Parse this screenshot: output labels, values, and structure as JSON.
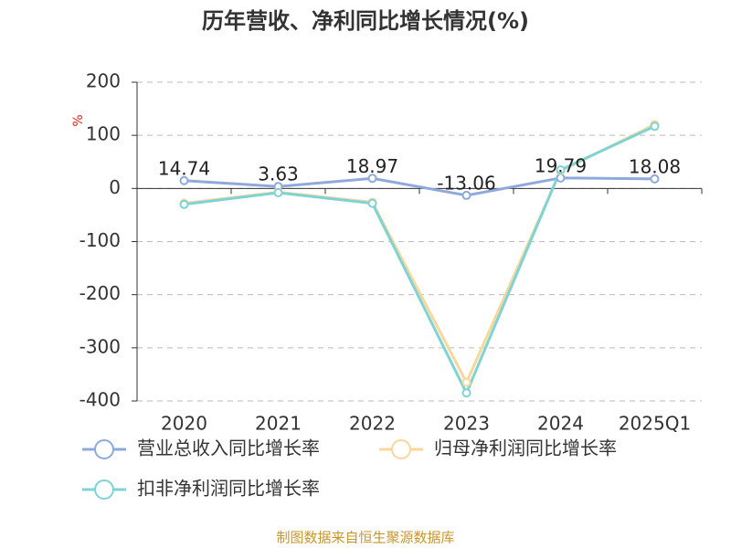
{
  "chart_data": {
    "type": "line",
    "title": "历年营收、净利同比增长情况(%)",
    "y_label": "%",
    "categories": [
      "2020",
      "2021",
      "2022",
      "2023",
      "2024",
      "2025Q1"
    ],
    "series": [
      {
        "name": "营业总收入同比增长率",
        "color": "#8fa9dc",
        "values": [
          14.74,
          3.63,
          18.97,
          -13.06,
          19.79,
          18.08
        ],
        "labels": true
      },
      {
        "name": "归母净利润同比增长率",
        "color": "#f9d79b",
        "values": [
          -28,
          -7,
          -26,
          -365,
          33,
          120
        ],
        "labels": false
      },
      {
        "name": "扣非净利润同比增长率",
        "color": "#7fd3d4",
        "values": [
          -30,
          -8,
          -28,
          -385,
          35,
          117
        ],
        "labels": false
      }
    ],
    "ylim": [
      -400,
      200
    ],
    "yticks": [
      -400,
      -300,
      -200,
      -100,
      0,
      100,
      200
    ],
    "grid": true,
    "source": "制图数据来自恒生聚源数据库"
  }
}
